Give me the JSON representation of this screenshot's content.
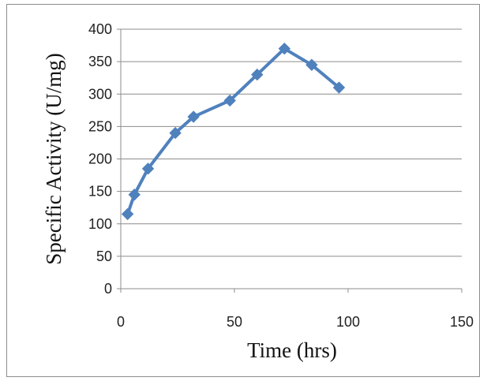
{
  "chart_data": {
    "type": "line",
    "title": "",
    "xlabel": "Time (hrs)",
    "ylabel": "Specific Activity (U/mg)",
    "xlim": [
      0,
      150
    ],
    "ylim": [
      0,
      400
    ],
    "xticks": [
      0,
      50,
      100,
      150
    ],
    "yticks": [
      0,
      50,
      100,
      150,
      200,
      250,
      300,
      350,
      400
    ],
    "grid": "horizontal",
    "legend": "none",
    "series": [
      {
        "color": "#4F81BD",
        "marker": "diamond",
        "points": [
          {
            "x": 3,
            "y": 115
          },
          {
            "x": 6,
            "y": 145
          },
          {
            "x": 12,
            "y": 185
          },
          {
            "x": 24,
            "y": 240
          },
          {
            "x": 32,
            "y": 265
          },
          {
            "x": 48,
            "y": 290
          },
          {
            "x": 60,
            "y": 330
          },
          {
            "x": 72,
            "y": 370
          },
          {
            "x": 84,
            "y": 345
          },
          {
            "x": 96,
            "y": 310
          }
        ]
      }
    ]
  }
}
